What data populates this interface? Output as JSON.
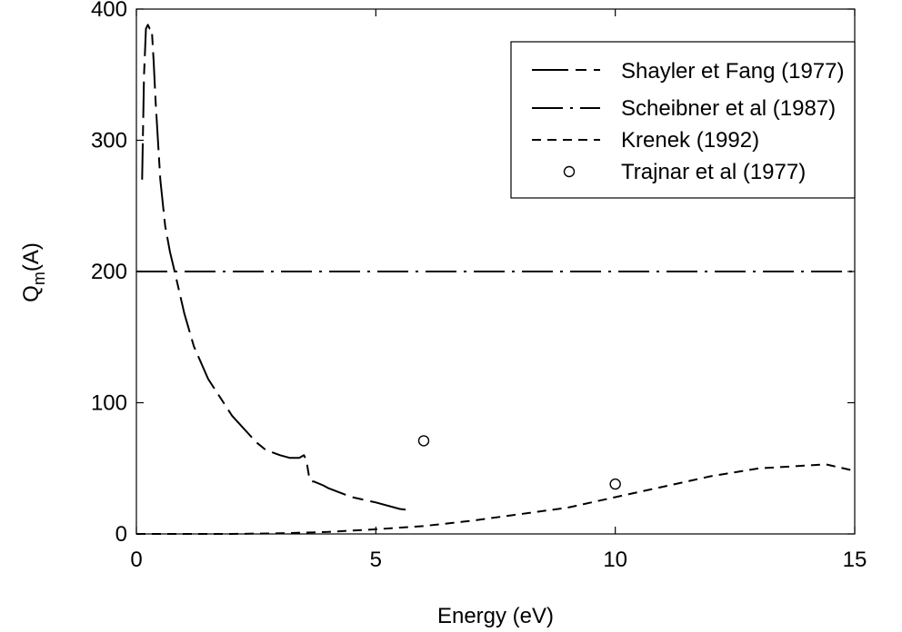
{
  "chart_data": {
    "type": "line",
    "xlabel": "Energy (eV)",
    "ylabel_main": "Q",
    "ylabel_sub": "m",
    "ylabel_suffix": "(A)",
    "xlim": [
      0,
      15
    ],
    "ylim": [
      0,
      400
    ],
    "xticks": [
      0,
      5,
      10,
      15
    ],
    "yticks": [
      0,
      100,
      200,
      300,
      400
    ],
    "grid": false,
    "legend_position": "top-right",
    "series": [
      {
        "name": "Shayler et Fang (1977)",
        "style": "long-short-dash",
        "x": [
          0.12,
          0.16,
          0.2,
          0.24,
          0.28,
          0.32,
          0.36,
          0.4,
          0.5,
          0.6,
          0.7,
          0.8,
          1.0,
          1.2,
          1.5,
          2.0,
          2.5,
          2.7,
          3.0,
          3.2,
          3.4,
          3.5,
          3.55,
          3.6,
          3.65,
          3.7,
          3.9,
          4.0,
          4.5,
          5.0,
          5.5,
          5.75
        ],
        "y": [
          270,
          350,
          385,
          388,
          385,
          385,
          360,
          330,
          270,
          235,
          215,
          200,
          168,
          143,
          118,
          90,
          70,
          64,
          60,
          58,
          58,
          60,
          56,
          45,
          40,
          40,
          37,
          35,
          28,
          24,
          19,
          18
        ]
      },
      {
        "name": "Scheibner et al (1987)",
        "style": "long-dash-dot",
        "x": [
          0,
          15
        ],
        "y": [
          200,
          200
        ]
      },
      {
        "name": "Krenek (1992)",
        "style": "short-dash",
        "x": [
          0,
          2,
          3,
          4,
          5,
          6,
          7,
          8,
          9,
          10,
          11,
          12,
          13,
          14.4,
          15
        ],
        "y": [
          0,
          0,
          0.5,
          1.5,
          3.5,
          6,
          10,
          15,
          20,
          28,
          36,
          44,
          50,
          53,
          48
        ]
      },
      {
        "name": "Trajnar et al (1977)",
        "style": "open-circle",
        "x": [
          6,
          10
        ],
        "y": [
          71,
          38
        ]
      }
    ]
  }
}
